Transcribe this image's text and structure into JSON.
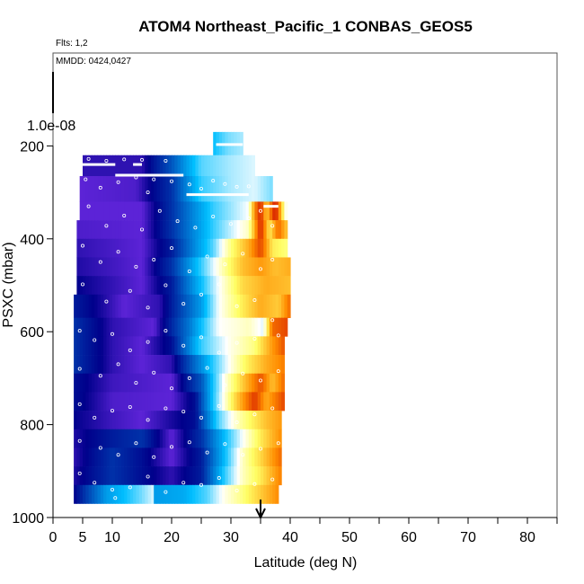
{
  "chart_data": {
    "type": "heatmap",
    "title": "ATOM4 Northeast_Pacific_1 CONBAS_GEOS5",
    "annotations": {
      "flights": "Flts: 1,2",
      "dates": "MMDD: 0424,0427"
    },
    "xlabel": "Latitude (deg N)",
    "ylabel": "PSXC (mbar)",
    "xlim": [
      0,
      85
    ],
    "ylim": [
      1000,
      0
    ],
    "x_ticks": [
      0,
      5,
      10,
      20,
      30,
      40,
      50,
      60,
      70,
      80
    ],
    "x_tick_labels": [
      "0",
      "5",
      "10",
      "20",
      "30",
      "40",
      "50",
      "60",
      "70",
      "80"
    ],
    "x_minor_ticks": [
      15,
      25,
      35,
      45,
      55,
      65,
      75,
      85
    ],
    "y_ticks": [
      200,
      400,
      600,
      800,
      1000
    ],
    "y_tick_labels": [
      "200",
      "400",
      "600",
      "800",
      "1000"
    ],
    "y_inset_label": "1.0e-08",
    "grid": false,
    "legend": "none",
    "marker_latitude": 35,
    "colors": {
      "low": "#00008b",
      "mid": "#00bfff",
      "neutral": "#ffffff",
      "high_low": "#ffff66",
      "high_mid": "#ff8c00",
      "high": "#cc0000",
      "violet": "#7b2ff0",
      "marker": "#000000",
      "flight_track": "#ffffff"
    },
    "bands": [
      {
        "p_top": 170,
        "p_bot": 220,
        "lat_start": 27,
        "lat_end": 32,
        "profile": [
          [
            27,
            0.35
          ],
          [
            29.5,
            0.42
          ],
          [
            32,
            0.45
          ]
        ]
      },
      {
        "p_top": 220,
        "p_bot": 265,
        "lat_start": 5,
        "lat_end": 34,
        "profile": [
          [
            5,
            0.05
          ],
          [
            15,
            0.05
          ],
          [
            20,
            0.2
          ],
          [
            25,
            0.4
          ],
          [
            30,
            0.45
          ],
          [
            34,
            0.48
          ]
        ]
      },
      {
        "p_top": 265,
        "p_bot": 320,
        "lat_start": 4.5,
        "lat_end": 37,
        "profile": [
          [
            4.5,
            0.02
          ],
          [
            14,
            0.03
          ],
          [
            20,
            0.15
          ],
          [
            25,
            0.38
          ],
          [
            30,
            0.45
          ],
          [
            34,
            0.48
          ],
          [
            37,
            0.42
          ]
        ]
      },
      {
        "p_top": 320,
        "p_bot": 360,
        "lat_start": 4.5,
        "lat_end": 39.5,
        "profile": [
          [
            4.5,
            0.02
          ],
          [
            15,
            0.02
          ],
          [
            20,
            0.15
          ],
          [
            27,
            0.38
          ],
          [
            33,
            0.5
          ],
          [
            34,
            0.8
          ],
          [
            35,
            0.95
          ],
          [
            36,
            0.7
          ],
          [
            37.5,
            0.98
          ],
          [
            39.5,
            0.45
          ]
        ]
      },
      {
        "p_top": 360,
        "p_bot": 400,
        "lat_start": 4,
        "lat_end": 39.5,
        "profile": [
          [
            4,
            0.03
          ],
          [
            15,
            0.02
          ],
          [
            20,
            0.15
          ],
          [
            27,
            0.38
          ],
          [
            33,
            0.55
          ],
          [
            35,
            0.95
          ],
          [
            36.5,
            0.65
          ],
          [
            38,
            0.85
          ],
          [
            39.5,
            0.7
          ]
        ]
      },
      {
        "p_top": 400,
        "p_bot": 440,
        "lat_start": 4,
        "lat_end": 39.5,
        "profile": [
          [
            4,
            0.05
          ],
          [
            15,
            0.02
          ],
          [
            20,
            0.12
          ],
          [
            27,
            0.4
          ],
          [
            30,
            0.6
          ],
          [
            33,
            0.75
          ],
          [
            35,
            0.9
          ],
          [
            37,
            0.65
          ],
          [
            39.5,
            0.6
          ]
        ]
      },
      {
        "p_top": 440,
        "p_bot": 480,
        "lat_start": 4,
        "lat_end": 40,
        "profile": [
          [
            4,
            0.06
          ],
          [
            15,
            0.02
          ],
          [
            20,
            0.15
          ],
          [
            25,
            0.38
          ],
          [
            29,
            0.58
          ],
          [
            32,
            0.72
          ],
          [
            35,
            0.78
          ],
          [
            37.5,
            0.72
          ],
          [
            40,
            0.75
          ]
        ]
      },
      {
        "p_top": 480,
        "p_bot": 520,
        "lat_start": 4,
        "lat_end": 40,
        "profile": [
          [
            4,
            0.08
          ],
          [
            15,
            0.02
          ],
          [
            20,
            0.12
          ],
          [
            25,
            0.35
          ],
          [
            28,
            0.5
          ],
          [
            32,
            0.68
          ],
          [
            36,
            0.75
          ],
          [
            40,
            0.72
          ]
        ]
      },
      {
        "p_top": 520,
        "p_bot": 570,
        "lat_start": 3.5,
        "lat_end": 40,
        "profile": [
          [
            3.5,
            0.12
          ],
          [
            12,
            0.02
          ],
          [
            18,
            0.05
          ],
          [
            25,
            0.3
          ],
          [
            28,
            0.5
          ],
          [
            32,
            0.65
          ],
          [
            35,
            0.75
          ],
          [
            38,
            0.7
          ],
          [
            40,
            0.85
          ]
        ]
      },
      {
        "p_top": 570,
        "p_bot": 610,
        "lat_start": 3.5,
        "lat_end": 39.5,
        "profile": [
          [
            3.5,
            0.15
          ],
          [
            10,
            0.05
          ],
          [
            17,
            0.02
          ],
          [
            23,
            0.25
          ],
          [
            28,
            0.5
          ],
          [
            33,
            0.55
          ],
          [
            35.5,
            0.48
          ],
          [
            37,
            0.85
          ],
          [
            39.5,
            0.9
          ]
        ]
      },
      {
        "p_top": 610,
        "p_bot": 650,
        "lat_start": 3.5,
        "lat_end": 39,
        "profile": [
          [
            3.5,
            0.15
          ],
          [
            10,
            0.05
          ],
          [
            15,
            0.02
          ],
          [
            20,
            0.1
          ],
          [
            25,
            0.38
          ],
          [
            30,
            0.52
          ],
          [
            34,
            0.6
          ],
          [
            37,
            0.78
          ],
          [
            39,
            0.88
          ]
        ]
      },
      {
        "p_top": 650,
        "p_bot": 690,
        "lat_start": 3.5,
        "lat_end": 39,
        "profile": [
          [
            3.5,
            0.15
          ],
          [
            10,
            0.05
          ],
          [
            15,
            0.02
          ],
          [
            20,
            0.05
          ],
          [
            25,
            0.28
          ],
          [
            30,
            0.52
          ],
          [
            33,
            0.65
          ],
          [
            36,
            0.75
          ],
          [
            39,
            0.82
          ]
        ]
      },
      {
        "p_top": 690,
        "p_bot": 730,
        "lat_start": 3.5,
        "lat_end": 39,
        "profile": [
          [
            3.5,
            0.1
          ],
          [
            10,
            0.04
          ],
          [
            20,
            0.02
          ],
          [
            25,
            0.2
          ],
          [
            29,
            0.52
          ],
          [
            32,
            0.7
          ],
          [
            35,
            0.88
          ],
          [
            37,
            0.72
          ],
          [
            39,
            0.85
          ]
        ]
      },
      {
        "p_top": 730,
        "p_bot": 770,
        "lat_start": 3.5,
        "lat_end": 39,
        "profile": [
          [
            3.5,
            0.1
          ],
          [
            10,
            0.03
          ],
          [
            20,
            0.02
          ],
          [
            24,
            0.1
          ],
          [
            28,
            0.45
          ],
          [
            31,
            0.7
          ],
          [
            34,
            0.92
          ],
          [
            36,
            0.75
          ],
          [
            39,
            0.9
          ]
        ]
      },
      {
        "p_top": 770,
        "p_bot": 810,
        "lat_start": 3.5,
        "lat_end": 38.5,
        "profile": [
          [
            3.5,
            0.08
          ],
          [
            10,
            0.04
          ],
          [
            15,
            0.02
          ],
          [
            24,
            0.1
          ],
          [
            28,
            0.4
          ],
          [
            31,
            0.55
          ],
          [
            34,
            0.65
          ],
          [
            36,
            0.72
          ],
          [
            38.5,
            0.78
          ]
        ]
      },
      {
        "p_top": 810,
        "p_bot": 850,
        "lat_start": 3.5,
        "lat_end": 38.5,
        "profile": [
          [
            3.5,
            0.06
          ],
          [
            10,
            0.12
          ],
          [
            15,
            0.15
          ],
          [
            20,
            0.02
          ],
          [
            25,
            0.15
          ],
          [
            29,
            0.35
          ],
          [
            32,
            0.5
          ],
          [
            35,
            0.65
          ],
          [
            38.5,
            0.8
          ]
        ]
      },
      {
        "p_top": 850,
        "p_bot": 890,
        "lat_start": 3.5,
        "lat_end": 38.5,
        "profile": [
          [
            3.5,
            0.05
          ],
          [
            10,
            0.15
          ],
          [
            15,
            0.1
          ],
          [
            20,
            0.02
          ],
          [
            25,
            0.12
          ],
          [
            29,
            0.35
          ],
          [
            32,
            0.55
          ],
          [
            35,
            0.68
          ],
          [
            38.5,
            0.85
          ]
        ]
      },
      {
        "p_top": 890,
        "p_bot": 930,
        "lat_start": 3.5,
        "lat_end": 38.5,
        "profile": [
          [
            3.5,
            0.06
          ],
          [
            10,
            0.15
          ],
          [
            15,
            0.1
          ],
          [
            20,
            0.05
          ],
          [
            25,
            0.12
          ],
          [
            29,
            0.38
          ],
          [
            32,
            0.55
          ],
          [
            35,
            0.65
          ],
          [
            38.5,
            0.82
          ]
        ]
      },
      {
        "p_top": 930,
        "p_bot": 970,
        "lat_start": 3.5,
        "lat_end": 38,
        "profile": [
          [
            3.5,
            0.08
          ],
          [
            9,
            0.3
          ],
          [
            12,
            0.35
          ],
          [
            15,
            0.42
          ],
          [
            17,
            0.48
          ],
          [
            17.2,
            0.3
          ],
          [
            22,
            0.32
          ],
          [
            26,
            0.4
          ],
          [
            29,
            0.52
          ],
          [
            32,
            0.6
          ],
          [
            35,
            0.7
          ],
          [
            38,
            0.8
          ]
        ]
      }
    ],
    "flight_tracks": [
      {
        "lat": [
          5,
          10.5
        ],
        "p": [
          240,
          240
        ]
      },
      {
        "lat": [
          13.5,
          15
        ],
        "p": [
          240,
          240
        ]
      },
      {
        "lat": [
          10.5,
          22
        ],
        "p": [
          263,
          263
        ]
      },
      {
        "lat": [
          22.5,
          33
        ],
        "p": [
          305,
          305
        ]
      },
      {
        "lat": [
          27.5,
          32
        ],
        "p": [
          197,
          197
        ]
      },
      {
        "lat": [
          35.5,
          38
        ],
        "p": [
          330,
          330
        ]
      }
    ],
    "scatter_points": [
      [
        6,
        228
      ],
      [
        9,
        232
      ],
      [
        12,
        229
      ],
      [
        15,
        230
      ],
      [
        19,
        232
      ],
      [
        5.5,
        272
      ],
      [
        8,
        290
      ],
      [
        11,
        278
      ],
      [
        14,
        268
      ],
      [
        16,
        300
      ],
      [
        17,
        272
      ],
      [
        20,
        276
      ],
      [
        23,
        283
      ],
      [
        25,
        292
      ],
      [
        27,
        275
      ],
      [
        29,
        282
      ],
      [
        31,
        288
      ],
      [
        33,
        287
      ],
      [
        6,
        330
      ],
      [
        9,
        372
      ],
      [
        12,
        350
      ],
      [
        15,
        380
      ],
      [
        18,
        340
      ],
      [
        21,
        362
      ],
      [
        24,
        376
      ],
      [
        27,
        352
      ],
      [
        30,
        368
      ],
      [
        33,
        356
      ],
      [
        35,
        340
      ],
      [
        37,
        372
      ],
      [
        5,
        415
      ],
      [
        8,
        450
      ],
      [
        11,
        428
      ],
      [
        14,
        460
      ],
      [
        17,
        445
      ],
      [
        20,
        420
      ],
      [
        23,
        470
      ],
      [
        26,
        438
      ],
      [
        29,
        455
      ],
      [
        32,
        432
      ],
      [
        35,
        465
      ],
      [
        37,
        445
      ],
      [
        5,
        498
      ],
      [
        9,
        535
      ],
      [
        13,
        512
      ],
      [
        16,
        548
      ],
      [
        19,
        500
      ],
      [
        22,
        540
      ],
      [
        25,
        520
      ],
      [
        28,
        498
      ],
      [
        31,
        545
      ],
      [
        34,
        532
      ],
      [
        37,
        575
      ],
      [
        4.5,
        598
      ],
      [
        7,
        618
      ],
      [
        10,
        605
      ],
      [
        13,
        640
      ],
      [
        16,
        622
      ],
      [
        19,
        598
      ],
      [
        22,
        630
      ],
      [
        25,
        612
      ],
      [
        28,
        645
      ],
      [
        31,
        624
      ],
      [
        34,
        615
      ],
      [
        38,
        608
      ],
      [
        4.5,
        680
      ],
      [
        8,
        695
      ],
      [
        11,
        670
      ],
      [
        14,
        710
      ],
      [
        17,
        688
      ],
      [
        20,
        722
      ],
      [
        23,
        700
      ],
      [
        26,
        678
      ],
      [
        29,
        715
      ],
      [
        32,
        690
      ],
      [
        35,
        705
      ],
      [
        38,
        685
      ],
      [
        4.5,
        756
      ],
      [
        7,
        785
      ],
      [
        10,
        770
      ],
      [
        13,
        762
      ],
      [
        16,
        790
      ],
      [
        19,
        765
      ],
      [
        22,
        772
      ],
      [
        25,
        785
      ],
      [
        28,
        760
      ],
      [
        31,
        795
      ],
      [
        34,
        778
      ],
      [
        37,
        765
      ],
      [
        4.5,
        835
      ],
      [
        8,
        850
      ],
      [
        11,
        865
      ],
      [
        14,
        840
      ],
      [
        17,
        870
      ],
      [
        20,
        848
      ],
      [
        23,
        838
      ],
      [
        26,
        860
      ],
      [
        29,
        842
      ],
      [
        32,
        865
      ],
      [
        35,
        852
      ],
      [
        38,
        840
      ],
      [
        4.5,
        905
      ],
      [
        7,
        925
      ],
      [
        10,
        940
      ],
      [
        10.5,
        958
      ],
      [
        13,
        935
      ],
      [
        16,
        912
      ],
      [
        19,
        945
      ],
      [
        22,
        925
      ],
      [
        25,
        930
      ],
      [
        28,
        915
      ],
      [
        31,
        942
      ],
      [
        34,
        928
      ],
      [
        37,
        918
      ]
    ]
  }
}
